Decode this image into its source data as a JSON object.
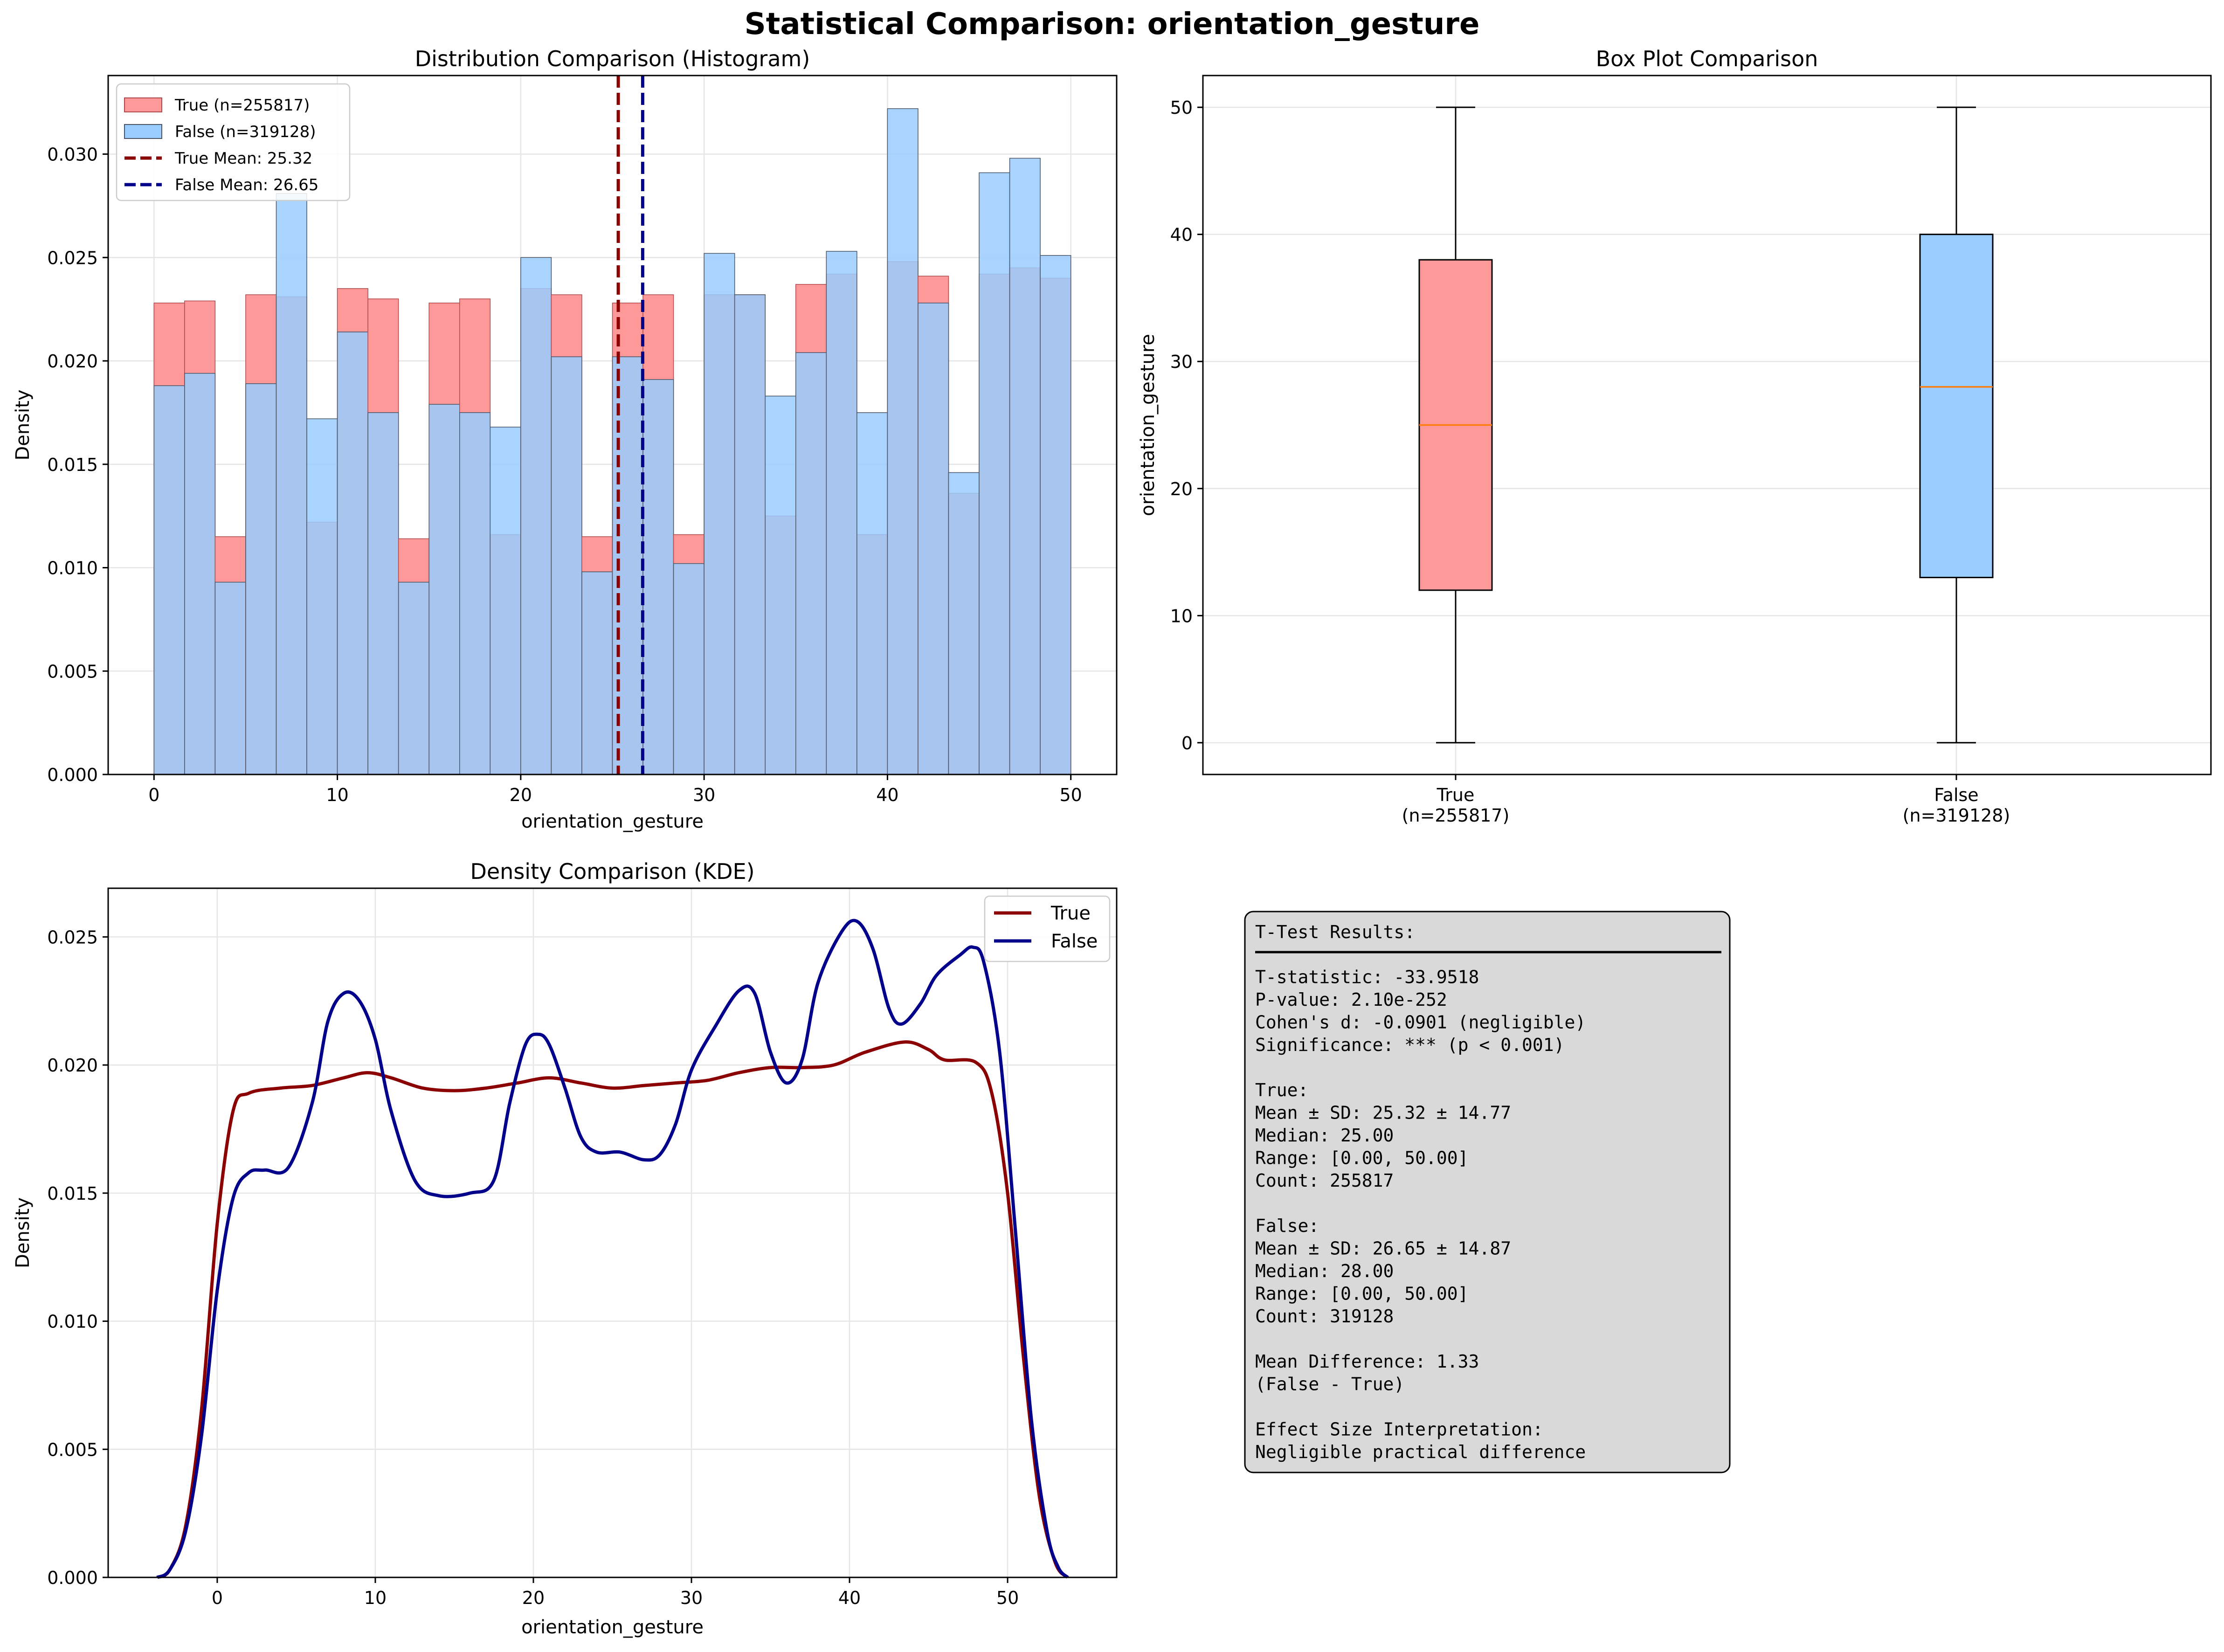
{
  "figure": {
    "suptitle": "Statistical Comparison: orientation_gesture"
  },
  "colors": {
    "true_fill": "#ff9999",
    "false_fill": "#99ccff",
    "true_line": "#8b0000",
    "false_line": "#00008b",
    "median": "#ff7f0e",
    "overlap": "#a9b8e5",
    "stats_box": "#d9d9d9"
  },
  "chart_data": [
    {
      "id": "histogram",
      "type": "bar",
      "title": "Distribution Comparison (Histogram)",
      "xlabel": "orientation_gesture",
      "ylabel": "Density",
      "xlim": [
        -2.5,
        52.5
      ],
      "ylim": [
        0,
        0.0338
      ],
      "xticks": [
        "0",
        "10",
        "20",
        "30",
        "40",
        "50"
      ],
      "yticks": [
        "0.000",
        "0.005",
        "0.010",
        "0.015",
        "0.020",
        "0.025",
        "0.030"
      ],
      "bin_edges": [
        0,
        1.667,
        3.333,
        5,
        6.667,
        8.333,
        10,
        11.667,
        13.333,
        15,
        16.667,
        18.333,
        20,
        21.667,
        23.333,
        25,
        26.667,
        28.333,
        30,
        31.667,
        33.333,
        35,
        36.667,
        38.333,
        40,
        41.667,
        43.333,
        45,
        46.667,
        48.333,
        50
      ],
      "series": [
        {
          "name": "True (n=255817)",
          "values": [
            0.0228,
            0.0229,
            0.0115,
            0.0232,
            0.0231,
            0.0122,
            0.0235,
            0.023,
            0.0114,
            0.0228,
            0.023,
            0.0116,
            0.0235,
            0.0232,
            0.0115,
            0.0228,
            0.0232,
            0.0116,
            0.0232,
            0.0232,
            0.0125,
            0.0237,
            0.0242,
            0.0116,
            0.0248,
            0.0241,
            0.0136,
            0.0242,
            0.0245,
            0.024
          ]
        },
        {
          "name": "False (n=319128)",
          "values": [
            0.0188,
            0.0194,
            0.0093,
            0.0189,
            0.0281,
            0.0172,
            0.0214,
            0.0175,
            0.0093,
            0.0179,
            0.0175,
            0.0168,
            0.025,
            0.0202,
            0.0098,
            0.0202,
            0.0191,
            0.0102,
            0.0252,
            0.0232,
            0.0183,
            0.0204,
            0.0253,
            0.0175,
            0.0322,
            0.0228,
            0.0146,
            0.0291,
            0.0298,
            0.0251
          ]
        }
      ],
      "mean_lines": [
        {
          "name": "True Mean: 25.32",
          "value": 25.32
        },
        {
          "name": "False Mean: 26.65",
          "value": 26.65
        }
      ],
      "legend_position": "upper-left",
      "grid": true
    },
    {
      "id": "boxplot",
      "type": "box",
      "title": "Box Plot Comparison",
      "ylabel": "orientation_gesture",
      "ylim": [
        -2.5,
        52.5
      ],
      "yticks": [
        "0",
        "10",
        "20",
        "30",
        "40",
        "50"
      ],
      "boxes": [
        {
          "label": "True",
          "count_label": "(n=255817)",
          "min": 0,
          "q1": 12,
          "median": 25,
          "q3": 38,
          "max": 50
        },
        {
          "label": "False",
          "count_label": "(n=319128)",
          "min": 0,
          "q1": 13,
          "median": 28,
          "q3": 40,
          "max": 50
        }
      ],
      "grid": true
    },
    {
      "id": "kde",
      "type": "line",
      "title": "Density Comparison (KDE)",
      "xlabel": "orientation_gesture",
      "ylabel": "Density",
      "xlim": [
        -6.9,
        56.9
      ],
      "ylim": [
        0,
        0.0269
      ],
      "xticks": [
        "0",
        "10",
        "20",
        "30",
        "40",
        "50"
      ],
      "yticks": [
        "0.000",
        "0.005",
        "0.010",
        "0.015",
        "0.020",
        "0.025"
      ],
      "series": [
        {
          "name": "True",
          "points": [
            [
              -3.8,
              0
            ],
            [
              -3,
              0.0003
            ],
            [
              -2,
              0.002
            ],
            [
              -1,
              0.0065
            ],
            [
              0,
              0.0138
            ],
            [
              1,
              0.0182
            ],
            [
              2,
              0.0189
            ],
            [
              4,
              0.0191
            ],
            [
              6,
              0.0192
            ],
            [
              8,
              0.0195
            ],
            [
              9.5,
              0.0197
            ],
            [
              11,
              0.0195
            ],
            [
              13,
              0.0191
            ],
            [
              15,
              0.019
            ],
            [
              17,
              0.0191
            ],
            [
              19,
              0.0193
            ],
            [
              21,
              0.0195
            ],
            [
              23,
              0.0193
            ],
            [
              25,
              0.0191
            ],
            [
              27,
              0.0192
            ],
            [
              29,
              0.0193
            ],
            [
              31,
              0.0194
            ],
            [
              33,
              0.0197
            ],
            [
              35,
              0.0199
            ],
            [
              37,
              0.0199
            ],
            [
              39,
              0.02
            ],
            [
              41,
              0.0205
            ],
            [
              43.5,
              0.0209
            ],
            [
              45,
              0.0206
            ],
            [
              46,
              0.0202
            ],
            [
              48,
              0.0201
            ],
            [
              49,
              0.0189
            ],
            [
              50,
              0.015
            ],
            [
              51,
              0.0086
            ],
            [
              52,
              0.0032
            ],
            [
              53,
              0.0006
            ],
            [
              53.8,
              0
            ]
          ]
        },
        {
          "name": "False",
          "points": [
            [
              -3.8,
              0
            ],
            [
              -3,
              0.0003
            ],
            [
              -2,
              0.0018
            ],
            [
              -1,
              0.0055
            ],
            [
              0,
              0.0112
            ],
            [
              1,
              0.0148
            ],
            [
              2,
              0.0158
            ],
            [
              3,
              0.0159
            ],
            [
              4.5,
              0.016
            ],
            [
              6,
              0.0185
            ],
            [
              7,
              0.0217
            ],
            [
              8,
              0.0228
            ],
            [
              9,
              0.0225
            ],
            [
              10,
              0.021
            ],
            [
              11,
              0.0182
            ],
            [
              12.5,
              0.0155
            ],
            [
              14,
              0.0149
            ],
            [
              16,
              0.015
            ],
            [
              17.5,
              0.0155
            ],
            [
              18.5,
              0.0185
            ],
            [
              19.5,
              0.0208
            ],
            [
              20.3,
              0.0212
            ],
            [
              21,
              0.0208
            ],
            [
              22,
              0.0191
            ],
            [
              23,
              0.0172
            ],
            [
              24,
              0.0166
            ],
            [
              25.5,
              0.0166
            ],
            [
              27,
              0.0163
            ],
            [
              28,
              0.0165
            ],
            [
              29,
              0.0177
            ],
            [
              30,
              0.0198
            ],
            [
              31.5,
              0.0215
            ],
            [
              33,
              0.0229
            ],
            [
              34,
              0.0228
            ],
            [
              35,
              0.0205
            ],
            [
              36,
              0.0193
            ],
            [
              37,
              0.0202
            ],
            [
              38,
              0.0232
            ],
            [
              39.5,
              0.0252
            ],
            [
              40.5,
              0.0256
            ],
            [
              41.5,
              0.0245
            ],
            [
              42.5,
              0.0222
            ],
            [
              43.3,
              0.0216
            ],
            [
              44.5,
              0.0224
            ],
            [
              45.5,
              0.0235
            ],
            [
              47,
              0.0243
            ],
            [
              47.8,
              0.0246
            ],
            [
              48.5,
              0.024
            ],
            [
              49.5,
              0.0205
            ],
            [
              50.5,
              0.0135
            ],
            [
              51.5,
              0.0062
            ],
            [
              52.5,
              0.0018
            ],
            [
              53.2,
              0.0004
            ],
            [
              53.8,
              0
            ]
          ]
        }
      ],
      "legend_position": "upper-right",
      "grid": true
    }
  ],
  "stats": {
    "lines": [
      "T-Test Results:",
      "",
      "T-statistic: -33.9518",
      "P-value: 2.10e-252",
      "Cohen's d: -0.0901 (negligible)",
      "Significance: *** (p < 0.001)",
      "",
      "True:",
      "  Mean ± SD: 25.32 ± 14.77",
      "  Median: 25.00",
      "  Range: [0.00, 50.00]",
      "  Count: 255817",
      "",
      "False:",
      "  Mean ± SD: 26.65 ± 14.87",
      "  Median: 28.00",
      "  Range: [0.00, 50.00]",
      "  Count: 319128",
      "",
      "Mean Difference: 1.33",
      "(False - True)",
      "",
      "Effect Size Interpretation:",
      "Negligible practical difference"
    ]
  }
}
